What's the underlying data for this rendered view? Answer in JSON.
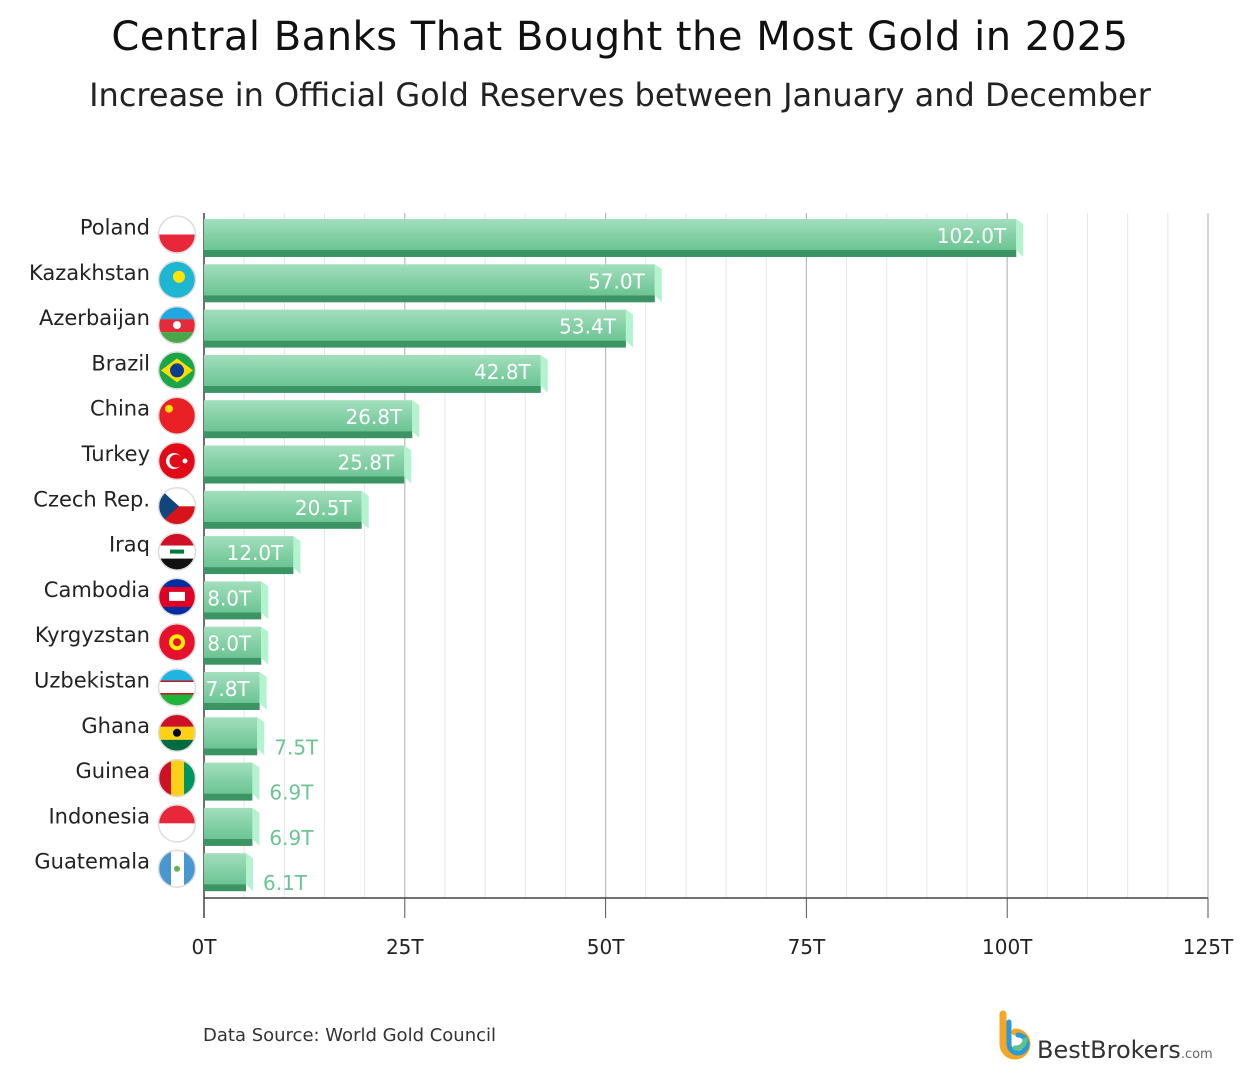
{
  "chart_data": {
    "type": "bar",
    "orientation": "horizontal",
    "title": "Central Banks That Bought the Most Gold in 2025",
    "subtitle": "Increase in Official Gold Reserves between January and December",
    "categories": [
      "Poland",
      "Kazakhstan",
      "Azerbaijan",
      "Brazil",
      "China",
      "Turkey",
      "Czech Rep.",
      "Iraq",
      "Cambodia",
      "Kyrgyzstan",
      "Uzbekistan",
      "Ghana",
      "Guinea",
      "Indonesia",
      "Guatemala"
    ],
    "values": [
      102.0,
      57.0,
      53.4,
      42.8,
      26.8,
      25.8,
      20.5,
      12.0,
      8.0,
      8.0,
      7.8,
      7.5,
      6.9,
      6.9,
      6.1
    ],
    "data_labels": [
      "102.0T",
      "57.0T",
      "53.4T",
      "42.8T",
      "26.8T",
      "25.8T",
      "20.5T",
      "12.0T",
      "8.0T",
      "8.0T",
      "7.8T",
      "7.5T",
      "6.9T",
      "6.9T",
      "6.1T"
    ],
    "xlim": [
      0,
      125
    ],
    "xticks": [
      0,
      25,
      50,
      75,
      100,
      125
    ],
    "xtick_labels": [
      "0T",
      "25T",
      "50T",
      "75T",
      "100T",
      "125T"
    ],
    "grid": true,
    "bar_color": "#7fcf9f",
    "bar_shadow_color": "#3a9463",
    "flag_icons": [
      "poland-flag",
      "kazakhstan-flag",
      "azerbaijan-flag",
      "brazil-flag",
      "china-flag",
      "turkey-flag",
      "czech-flag",
      "iraq-flag",
      "cambodia-flag",
      "kyrgyzstan-flag",
      "uzbekistan-flag",
      "ghana-flag",
      "guinea-flag",
      "indonesia-flag",
      "guatemala-flag"
    ]
  },
  "source": "Data Source: World Gold Council",
  "logo": {
    "name": "BestBrokers",
    "suffix": ".com"
  }
}
